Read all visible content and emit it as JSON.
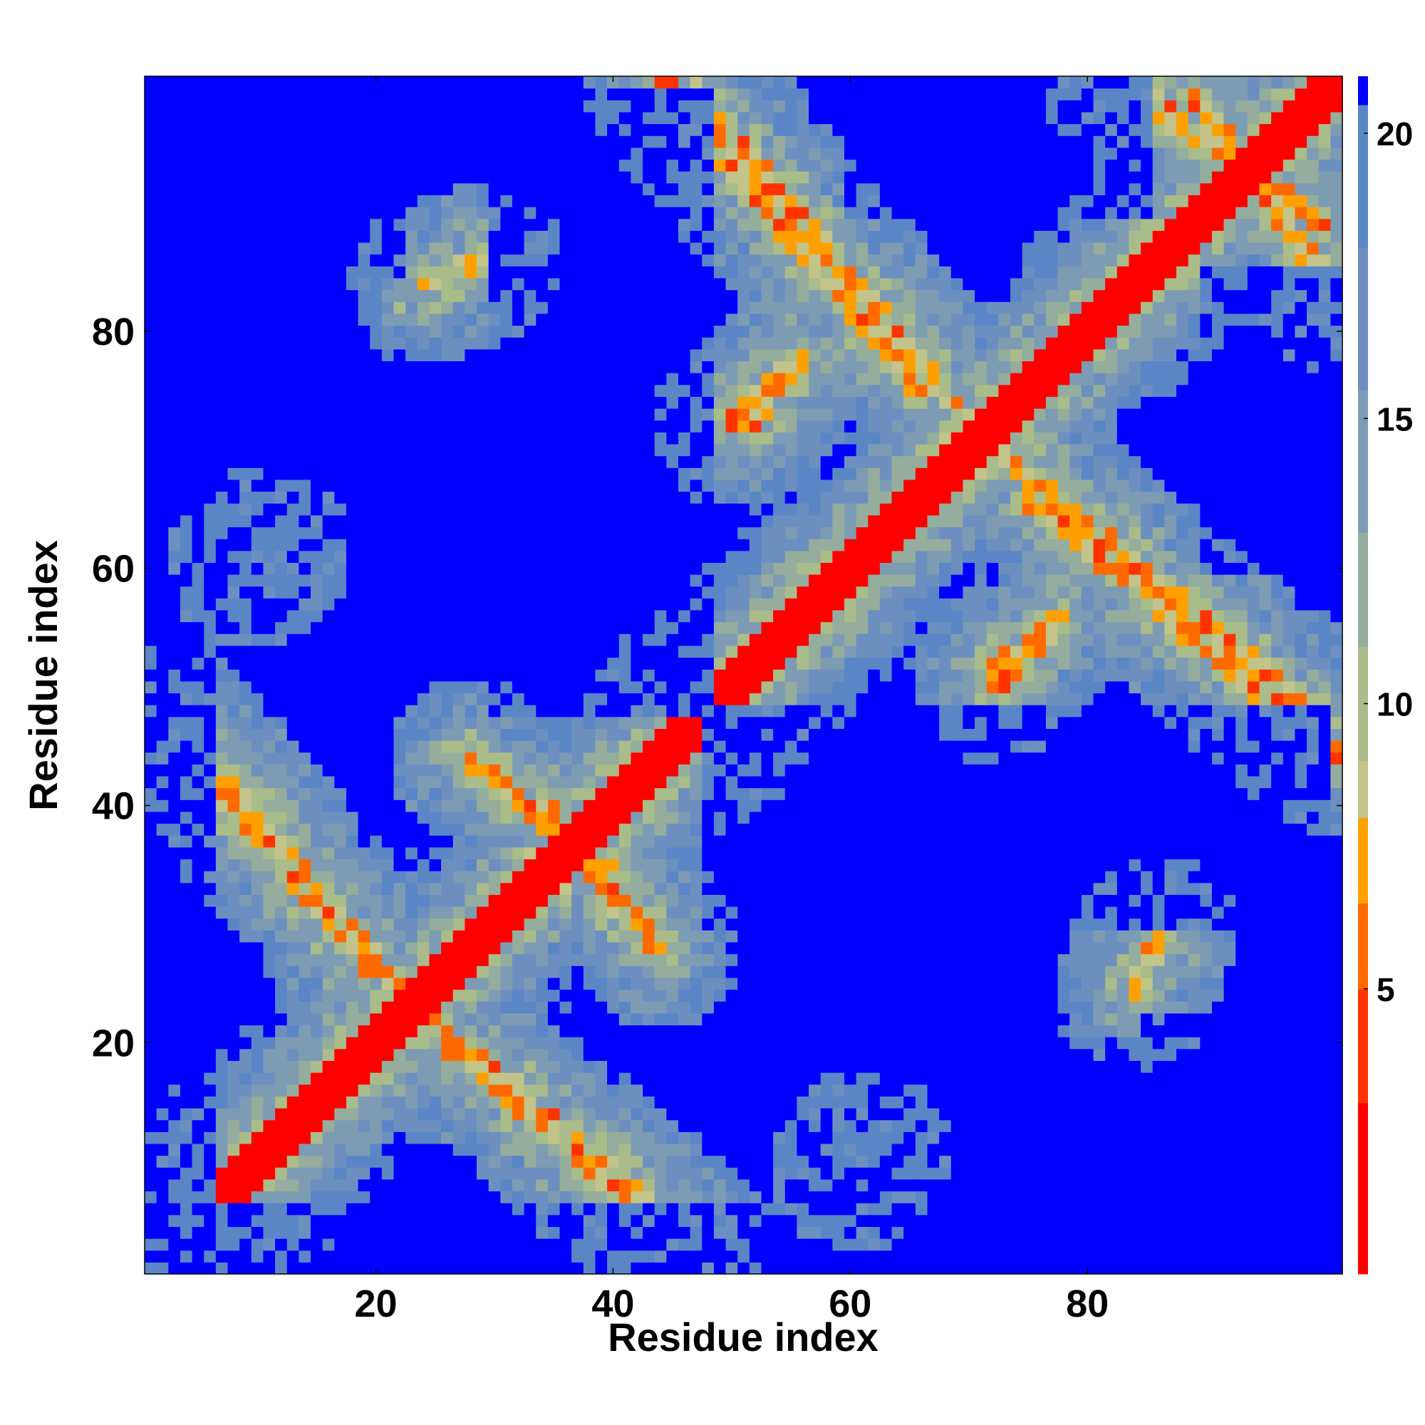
{
  "chart_data": {
    "type": "heatmap",
    "title": "",
    "xlabel": "Residue index",
    "ylabel": "Residue index",
    "n_residues": 101,
    "x_range": [
      1,
      101
    ],
    "y_range": [
      1,
      101
    ],
    "x_ticks": [
      20,
      40,
      60,
      80
    ],
    "y_ticks": [
      20,
      40,
      60,
      80
    ],
    "value_meaning": "pairwise residue distance (symmetric matrix, zero on the diagonal, saturating at about 21)",
    "colorbar": {
      "range": [
        0,
        21
      ],
      "ticks": [
        5,
        10,
        15,
        20
      ],
      "colors": [
        {
          "from": 0,
          "to": 3,
          "color": "#ff0000"
        },
        {
          "from": 3,
          "to": 5,
          "color": "#ff3300"
        },
        {
          "from": 5,
          "to": 6.5,
          "color": "#ff6a00"
        },
        {
          "from": 6.5,
          "to": 8,
          "color": "#ffa000"
        },
        {
          "from": 8,
          "to": 9,
          "color": "#c2c48a"
        },
        {
          "from": 9,
          "to": 11,
          "color": "#a9bc8a"
        },
        {
          "from": 11,
          "to": 13,
          "color": "#94ad9c"
        },
        {
          "from": 13,
          "to": 15.5,
          "color": "#7d9cb4"
        },
        {
          "from": 15.5,
          "to": 18,
          "color": "#6d8fc0"
        },
        {
          "from": 18,
          "to": 20.5,
          "color": "#5b86c5"
        },
        {
          "from": 20.5,
          "to": 21,
          "color": "#0000ff"
        }
      ]
    },
    "contact_bands": [
      {
        "kind": "anti-parallel",
        "i": [
          2,
          20
        ],
        "j": [
          47,
          26
        ]
      },
      {
        "kind": "anti-parallel",
        "i": [
          3,
          23
        ],
        "j": [
          47,
          23
        ]
      },
      {
        "kind": "anti-parallel",
        "i": [
          28,
          40
        ],
        "j": [
          44,
          34
        ]
      },
      {
        "kind": "anti-parallel",
        "i": [
          44,
          66
        ],
        "j": [
          101,
          75
        ]
      },
      {
        "kind": "anti-parallel",
        "i": [
          70,
          100
        ],
        "j": [
          72,
          47
        ]
      },
      {
        "kind": "anti-parallel",
        "i": [
          83,
          100
        ],
        "j": [
          101,
          89
        ]
      },
      {
        "kind": "parallel",
        "i": [
          50,
          56
        ],
        "j": [
          72,
          78
        ]
      },
      {
        "kind": "blob",
        "i": [
          9,
          11
        ],
        "j": [
          60,
          61
        ]
      },
      {
        "kind": "blob",
        "i": [
          60,
          62
        ],
        "j": [
          9,
          11
        ]
      },
      {
        "kind": "blob",
        "i": [
          84,
          86
        ],
        "j": [
          24,
          29
        ]
      },
      {
        "kind": "blob",
        "i": [
          72,
          74
        ],
        "j": [
          50,
          53
        ]
      },
      {
        "kind": "blob",
        "i": [
          51,
          53
        ],
        "j": [
          72,
          74
        ]
      }
    ],
    "far_regions": [
      {
        "i": [
          1,
          6
        ],
        "j": [
          1,
          101
        ],
        "note": "left edge mostly distant"
      },
      {
        "i": [
          5,
          20
        ],
        "j": [
          55,
          100
        ]
      },
      {
        "i": [
          30,
          48
        ],
        "j": [
          48,
          100
        ]
      },
      {
        "i": [
          55,
          100
        ],
        "j": [
          5,
          20
        ]
      },
      {
        "i": [
          48,
          100
        ],
        "j": [
          30,
          48
        ]
      },
      {
        "i": [
          85,
          100
        ],
        "j": [
          2,
          22
        ]
      },
      {
        "i": [
          90,
          101
        ],
        "j": [
          60,
          85
        ]
      }
    ],
    "grid": false
  }
}
